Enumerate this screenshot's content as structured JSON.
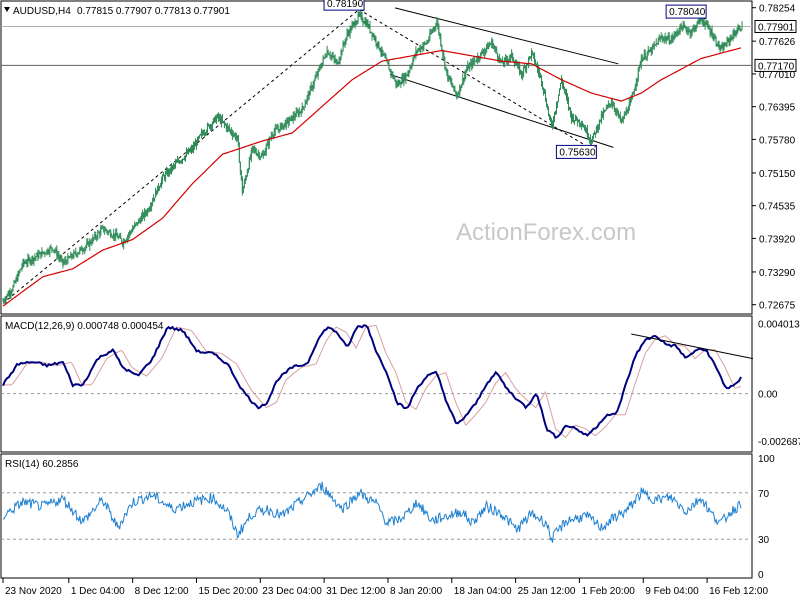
{
  "colors": {
    "candle": "#2e8b57",
    "ma": "#d40000",
    "macd": "#000080",
    "signal": "#d8a0a0",
    "rsi": "#1e7fd0",
    "grid_dash": "#9a9a9a",
    "frame": "#000000",
    "watermark": "#c8c8c8"
  },
  "icons": {
    "collapse": "triangle-down-icon"
  },
  "watermark": "ActionForex.com",
  "chart_data": [
    {
      "type": "candlestick",
      "symbol": "AUDUSD,H4",
      "ohlc_text": "0.77815 0.77907 0.77813 0.77901",
      "yticks": [
        {
          "value": 0.78254,
          "label": "0.78254"
        },
        {
          "value": 0.77626,
          "label": "0.77626"
        },
        {
          "value": 0.7701,
          "label": "0.77010"
        },
        {
          "value": 0.76395,
          "label": "0.76395"
        },
        {
          "value": 0.7578,
          "label": "0.75780"
        },
        {
          "value": 0.7515,
          "label": "0.75150"
        },
        {
          "value": 0.74535,
          "label": "0.74535"
        },
        {
          "value": 0.7392,
          "label": "0.73920"
        },
        {
          "value": 0.7329,
          "label": "0.73290"
        },
        {
          "value": 0.72675,
          "label": "0.72675"
        }
      ],
      "ylim": [
        0.725,
        0.7838
      ],
      "current_price": {
        "value": 0.77901,
        "label": "0.77901"
      },
      "level_line": {
        "value": 0.7717,
        "label": "0.77170"
      },
      "annotations": [
        {
          "label": "0.78190",
          "value": 0.7819,
          "bar": 357
        },
        {
          "label": "0.78040",
          "value": 0.7804,
          "bar": 700
        },
        {
          "label": "0.75630",
          "value": 0.7563,
          "bar": 590
        }
      ],
      "price_anchors": [
        [
          0,
          0.7275
        ],
        [
          10,
          0.73
        ],
        [
          20,
          0.7345
        ],
        [
          35,
          0.736
        ],
        [
          50,
          0.7375
        ],
        [
          60,
          0.7345
        ],
        [
          70,
          0.736
        ],
        [
          85,
          0.738
        ],
        [
          100,
          0.741
        ],
        [
          115,
          0.7395
        ],
        [
          120,
          0.7385
        ],
        [
          130,
          0.741
        ],
        [
          145,
          0.7445
        ],
        [
          160,
          0.7505
        ],
        [
          175,
          0.7535
        ],
        [
          190,
          0.756
        ],
        [
          200,
          0.759
        ],
        [
          215,
          0.762
        ],
        [
          225,
          0.76
        ],
        [
          235,
          0.758
        ],
        [
          240,
          0.748
        ],
        [
          250,
          0.756
        ],
        [
          260,
          0.7545
        ],
        [
          270,
          0.759
        ],
        [
          285,
          0.761
        ],
        [
          300,
          0.7635
        ],
        [
          315,
          0.77
        ],
        [
          325,
          0.7745
        ],
        [
          335,
          0.772
        ],
        [
          345,
          0.7775
        ],
        [
          357,
          0.781
        ],
        [
          365,
          0.7795
        ],
        [
          375,
          0.776
        ],
        [
          385,
          0.772
        ],
        [
          395,
          0.768
        ],
        [
          405,
          0.77
        ],
        [
          415,
          0.7745
        ],
        [
          425,
          0.776
        ],
        [
          435,
          0.78
        ],
        [
          445,
          0.77
        ],
        [
          455,
          0.766
        ],
        [
          465,
          0.771
        ],
        [
          475,
          0.773
        ],
        [
          490,
          0.776
        ],
        [
          500,
          0.772
        ],
        [
          510,
          0.7735
        ],
        [
          520,
          0.77
        ],
        [
          530,
          0.774
        ],
        [
          540,
          0.769
        ],
        [
          550,
          0.76
        ],
        [
          560,
          0.769
        ],
        [
          570,
          0.762
        ],
        [
          580,
          0.761
        ],
        [
          590,
          0.7575
        ],
        [
          600,
          0.762
        ],
        [
          610,
          0.765
        ],
        [
          620,
          0.761
        ],
        [
          630,
          0.765
        ],
        [
          640,
          0.773
        ],
        [
          650,
          0.7745
        ],
        [
          660,
          0.777
        ],
        [
          670,
          0.7765
        ],
        [
          680,
          0.779
        ],
        [
          690,
          0.778
        ],
        [
          700,
          0.7805
        ],
        [
          710,
          0.778
        ],
        [
          720,
          0.7745
        ],
        [
          730,
          0.777
        ],
        [
          740,
          0.779
        ]
      ],
      "ma_anchors": [
        [
          0,
          0.7265
        ],
        [
          40,
          0.732
        ],
        [
          70,
          0.7335
        ],
        [
          100,
          0.737
        ],
        [
          130,
          0.739
        ],
        [
          160,
          0.743
        ],
        [
          190,
          0.7495
        ],
        [
          220,
          0.755
        ],
        [
          260,
          0.7575
        ],
        [
          290,
          0.759
        ],
        [
          320,
          0.764
        ],
        [
          350,
          0.769
        ],
        [
          380,
          0.7725
        ],
        [
          410,
          0.7735
        ],
        [
          440,
          0.7745
        ],
        [
          470,
          0.7735
        ],
        [
          500,
          0.7725
        ],
        [
          530,
          0.772
        ],
        [
          560,
          0.769
        ],
        [
          590,
          0.7665
        ],
        [
          620,
          0.765
        ],
        [
          640,
          0.7665
        ],
        [
          660,
          0.769
        ],
        [
          680,
          0.771
        ],
        [
          700,
          0.773
        ],
        [
          720,
          0.774
        ],
        [
          740,
          0.775
        ]
      ],
      "trendlines": [
        {
          "from": [
            0,
            0.727
          ],
          "to": [
            357,
            0.7822
          ]
        },
        {
          "from": [
            357,
            0.7822
          ],
          "to": [
            590,
            0.756
          ]
        },
        {
          "from": [
            393,
            0.7825
          ],
          "to": [
            617,
            0.772
          ]
        },
        {
          "from": [
            388,
            0.77
          ],
          "to": [
            612,
            0.7563
          ]
        }
      ],
      "xticks": [
        {
          "bar": 0,
          "label": "23 Nov 2020"
        },
        {
          "bar": 66,
          "label": "1 Dec 04:00"
        },
        {
          "bar": 130,
          "label": "8 Dec 12:00"
        },
        {
          "bar": 194,
          "label": "15 Dec 20:00"
        },
        {
          "bar": 258,
          "label": "23 Dec 04:00"
        },
        {
          "bar": 322,
          "label": "31 Dec 12:00"
        },
        {
          "bar": 386,
          "label": "8 Jan 20:00"
        },
        {
          "bar": 450,
          "label": "18 Jan 04:00"
        },
        {
          "bar": 514,
          "label": "25 Jan 12:00"
        },
        {
          "bar": 578,
          "label": "1 Feb 20:00"
        },
        {
          "bar": 642,
          "label": "9 Feb 04:00"
        },
        {
          "bar": 706,
          "label": "16 Feb 12:00"
        }
      ]
    },
    {
      "type": "line",
      "name": "MACD(12,26,9) 0.000748 0.000454",
      "yticks": [
        {
          "value": 0.004013,
          "label": "0.004013"
        },
        {
          "value": 0.0,
          "label": "0.00"
        },
        {
          "value": -0.002687,
          "label": "-0.002687"
        }
      ],
      "ylim": [
        -0.0031,
        0.0042
      ],
      "macd_anchors": [
        [
          0,
          0.0005
        ],
        [
          15,
          0.0017
        ],
        [
          30,
          0.0018
        ],
        [
          45,
          0.0016
        ],
        [
          60,
          0.0018
        ],
        [
          70,
          0.0005
        ],
        [
          80,
          0.0005
        ],
        [
          95,
          0.002
        ],
        [
          110,
          0.0025
        ],
        [
          120,
          0.0015
        ],
        [
          135,
          0.001
        ],
        [
          150,
          0.002
        ],
        [
          165,
          0.0038
        ],
        [
          180,
          0.0036
        ],
        [
          195,
          0.0024
        ],
        [
          210,
          0.0023
        ],
        [
          225,
          0.0017
        ],
        [
          240,
          0.0002
        ],
        [
          255,
          -0.0008
        ],
        [
          265,
          -0.0005
        ],
        [
          275,
          0.0008
        ],
        [
          290,
          0.0015
        ],
        [
          305,
          0.0017
        ],
        [
          315,
          0.003
        ],
        [
          325,
          0.0038
        ],
        [
          335,
          0.0035
        ],
        [
          345,
          0.0026
        ],
        [
          355,
          0.0038
        ],
        [
          365,
          0.0039
        ],
        [
          375,
          0.0023
        ],
        [
          385,
          0.0012
        ],
        [
          395,
          -0.0005
        ],
        [
          405,
          -0.0009
        ],
        [
          415,
          0.0003
        ],
        [
          425,
          0.001
        ],
        [
          435,
          0.0012
        ],
        [
          445,
          -0.0005
        ],
        [
          455,
          -0.0018
        ],
        [
          465,
          -0.0012
        ],
        [
          475,
          -0.0005
        ],
        [
          485,
          0.0006
        ],
        [
          495,
          0.0012
        ],
        [
          505,
          0.0003
        ],
        [
          515,
          -0.0003
        ],
        [
          525,
          -0.0008
        ],
        [
          535,
          0.0001
        ],
        [
          545,
          -0.002
        ],
        [
          555,
          -0.0025
        ],
        [
          565,
          -0.0018
        ],
        [
          575,
          -0.002
        ],
        [
          585,
          -0.0024
        ],
        [
          595,
          -0.0019
        ],
        [
          605,
          -0.0012
        ],
        [
          615,
          -0.0012
        ],
        [
          625,
          0.0006
        ],
        [
          635,
          0.0023
        ],
        [
          645,
          0.0031
        ],
        [
          655,
          0.0033
        ],
        [
          665,
          0.0028
        ],
        [
          675,
          0.0027
        ],
        [
          685,
          0.002
        ],
        [
          695,
          0.0025
        ],
        [
          705,
          0.0025
        ],
        [
          715,
          0.0015
        ],
        [
          725,
          0.0003
        ],
        [
          735,
          0.0005
        ],
        [
          740,
          0.0009
        ]
      ],
      "signal_lag_bars": 9,
      "trendline": {
        "from": [
          630,
          0.0034
        ],
        "to": [
          752,
          0.002
        ]
      }
    },
    {
      "type": "line",
      "name": "RSI(14) 60.2856",
      "yticks": [
        {
          "value": 100,
          "label": "100"
        },
        {
          "value": 70,
          "label": "70"
        },
        {
          "value": 30,
          "label": "30"
        },
        {
          "value": 0,
          "label": "0"
        }
      ],
      "ylim": [
        0,
        100
      ],
      "rsi_anchors": [
        [
          0,
          50
        ],
        [
          20,
          62
        ],
        [
          40,
          58
        ],
        [
          60,
          65
        ],
        [
          80,
          45
        ],
        [
          100,
          64
        ],
        [
          115,
          40
        ],
        [
          130,
          62
        ],
        [
          150,
          68
        ],
        [
          170,
          56
        ],
        [
          190,
          62
        ],
        [
          210,
          66
        ],
        [
          225,
          54
        ],
        [
          235,
          34
        ],
        [
          250,
          52
        ],
        [
          265,
          56
        ],
        [
          280,
          50
        ],
        [
          300,
          64
        ],
        [
          320,
          76
        ],
        [
          340,
          56
        ],
        [
          357,
          70
        ],
        [
          375,
          60
        ],
        [
          385,
          44
        ],
        [
          395,
          46
        ],
        [
          405,
          52
        ],
        [
          415,
          62
        ],
        [
          430,
          46
        ],
        [
          445,
          50
        ],
        [
          460,
          54
        ],
        [
          470,
          44
        ],
        [
          485,
          58
        ],
        [
          500,
          52
        ],
        [
          515,
          38
        ],
        [
          530,
          52
        ],
        [
          545,
          44
        ],
        [
          550,
          30
        ],
        [
          565,
          46
        ],
        [
          585,
          50
        ],
        [
          600,
          40
        ],
        [
          615,
          50
        ],
        [
          625,
          54
        ],
        [
          640,
          70
        ],
        [
          655,
          64
        ],
        [
          670,
          66
        ],
        [
          685,
          54
        ],
        [
          700,
          66
        ],
        [
          710,
          52
        ],
        [
          720,
          44
        ],
        [
          730,
          54
        ],
        [
          740,
          60
        ]
      ]
    }
  ]
}
